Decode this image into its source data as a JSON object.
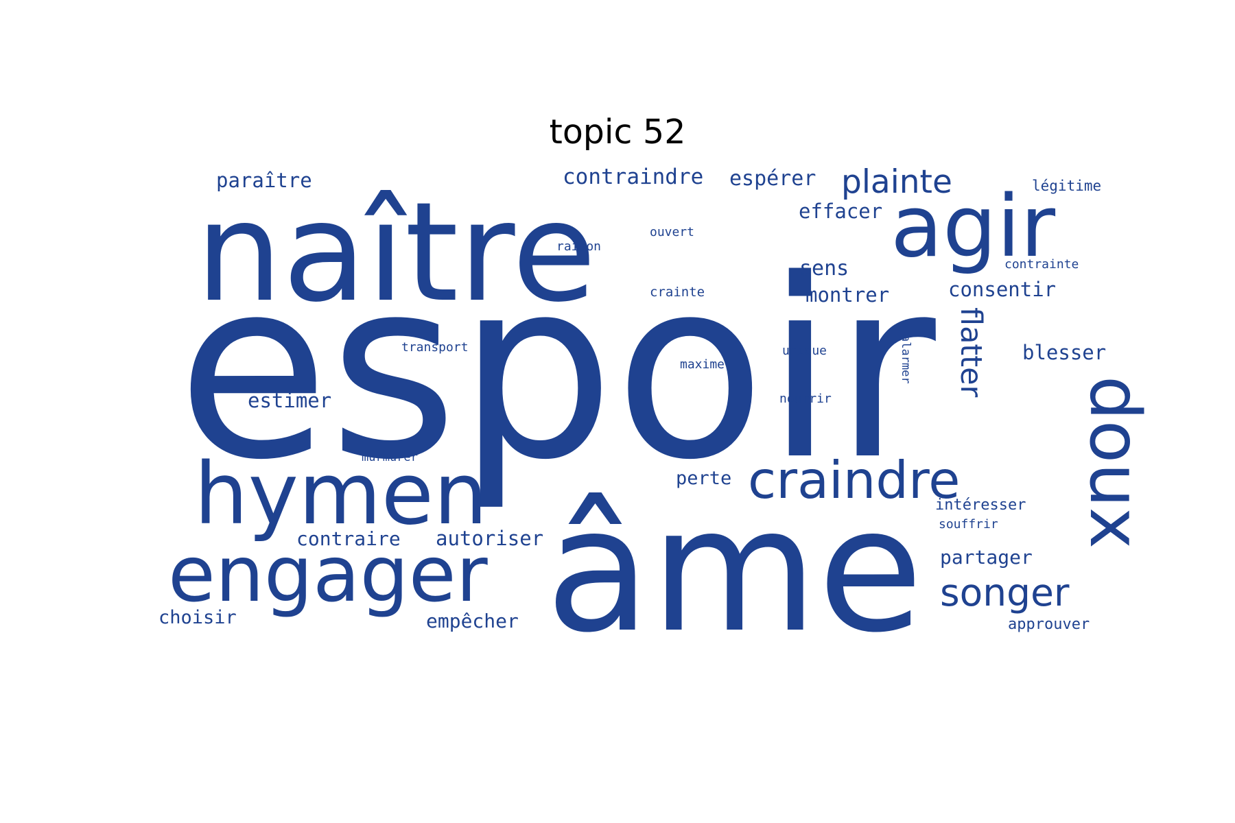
{
  "chart_data": {
    "type": "wordcloud",
    "title": "topic 52",
    "color": "#1f4290",
    "words": [
      {
        "text": "espoir"
      },
      {
        "text": "âme"
      },
      {
        "text": "naître"
      },
      {
        "text": "agir"
      },
      {
        "text": "hymen"
      },
      {
        "text": "engager"
      },
      {
        "text": "doux"
      },
      {
        "text": "craindre"
      },
      {
        "text": "songer"
      },
      {
        "text": "plainte"
      },
      {
        "text": "flatter"
      },
      {
        "text": "contraindre"
      },
      {
        "text": "espérer"
      },
      {
        "text": "paraître"
      },
      {
        "text": "effacer"
      },
      {
        "text": "consentir"
      },
      {
        "text": "montrer"
      },
      {
        "text": "blesser"
      },
      {
        "text": "sens"
      },
      {
        "text": "estimer"
      },
      {
        "text": "autoriser"
      },
      {
        "text": "contraire"
      },
      {
        "text": "partager"
      },
      {
        "text": "empêcher"
      },
      {
        "text": "choisir"
      },
      {
        "text": "perte"
      },
      {
        "text": "intéresser"
      },
      {
        "text": "approuver"
      },
      {
        "text": "légitime"
      },
      {
        "text": "contrainte"
      },
      {
        "text": "ouvert"
      },
      {
        "text": "raison"
      },
      {
        "text": "crainte"
      },
      {
        "text": "transport"
      },
      {
        "text": "unique"
      },
      {
        "text": "maxime"
      },
      {
        "text": "nourrir"
      },
      {
        "text": "alarmer"
      },
      {
        "text": "souffrir"
      },
      {
        "text": "murmurer"
      }
    ]
  }
}
